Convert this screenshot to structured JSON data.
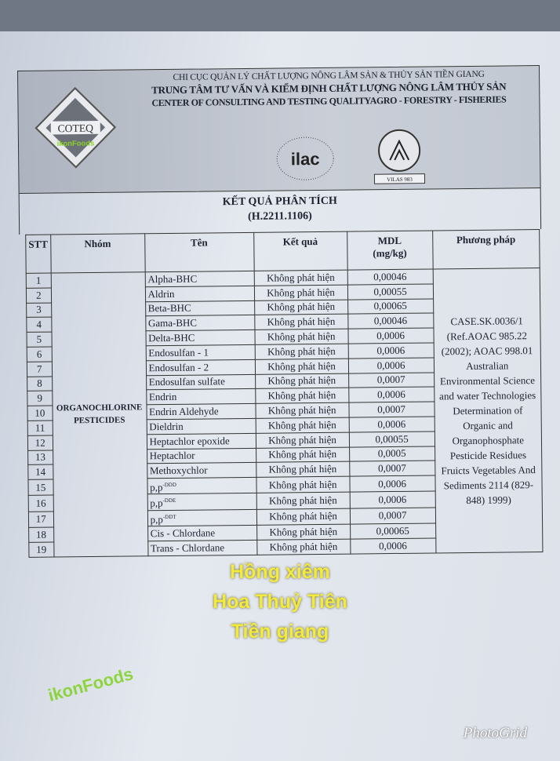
{
  "header": {
    "line1": "CHI CỤC QUẢN LÝ CHẤT LƯỢNG NÔNG LÂM SẢN & THỦY SẢN TIỀN GIANG",
    "line2": "TRUNG TÂM TƯ VẤN VÀ KIỂM ĐỊNH CHẤT LƯỢNG NÔNG LÂM THỦY SẢN",
    "line3": "CENTER OF CONSULTING AND TESTING QUALITYAGRO - FORESTRY - FISHERIES",
    "logo_text": "COTEQ",
    "ilac": "ilac",
    "vilas": "VILAS 983"
  },
  "report": {
    "title": "KẾT QUẢ PHÂN TÍCH",
    "code": "(H.2211.1106)"
  },
  "table": {
    "headers": {
      "stt": "STT",
      "group": "Nhóm",
      "name": "Tên",
      "result": "Kết quả",
      "mdl": "MDL",
      "mdl_unit": "(mg/kg)",
      "method": "Phương pháp"
    },
    "group": "ORGANOCHLORINE PESTICIDES",
    "method": "CASE.SK.0036/1 (Ref.AOAC 985.22 (2002); AOAC 998.01 Australian Environmental Science and water Technologies Determination of Organic and Organophosphate Pesticide Residues Fruicts Vegetables And Sediments 2114 (829-848) 1999)",
    "rows": [
      {
        "stt": "1",
        "name": "Alpha-BHC",
        "result": "Không phát hiện",
        "mdl": "0,00046"
      },
      {
        "stt": "2",
        "name": "Aldrin",
        "result": "Không phát hiện",
        "mdl": "0,00055"
      },
      {
        "stt": "3",
        "name": "Beta-BHC",
        "result": "Không phát hiện",
        "mdl": "0,00065"
      },
      {
        "stt": "4",
        "name": "Gama-BHC",
        "result": "Không phát hiện",
        "mdl": "0,00046"
      },
      {
        "stt": "5",
        "name": "Delta-BHC",
        "result": "Không phát hiện",
        "mdl": "0,0006"
      },
      {
        "stt": "6",
        "name": "Endosulfan - 1",
        "result": "Không phát hiện",
        "mdl": "0,0006"
      },
      {
        "stt": "7",
        "name": "Endosulfan - 2",
        "result": "Không phát hiện",
        "mdl": "0,0006"
      },
      {
        "stt": "8",
        "name": "Endosulfan sulfate",
        "result": "Không phát hiện",
        "mdl": "0,0007"
      },
      {
        "stt": "9",
        "name": "Endrin",
        "result": "Không phát hiện",
        "mdl": "0,0006"
      },
      {
        "stt": "10",
        "name": "Endrin Aldehyde",
        "result": "Không phát hiện",
        "mdl": "0,0007"
      },
      {
        "stt": "11",
        "name": "Dieldrin",
        "result": "Không phát hiện",
        "mdl": "0,0006"
      },
      {
        "stt": "12",
        "name": "Heptachlor epoxide",
        "result": "Không phát hiện",
        "mdl": "0,00055"
      },
      {
        "stt": "13",
        "name": "Heptachlor",
        "result": "Không phát hiện",
        "mdl": "0,0005"
      },
      {
        "stt": "14",
        "name": "Methoxychlor",
        "result": "Không phát hiện",
        "mdl": "0,0007"
      },
      {
        "stt": "15",
        "name": "p,p",
        "sup": "-DDD",
        "result": "Không phát hiện",
        "mdl": "0,0006"
      },
      {
        "stt": "16",
        "name": "p,p",
        "sup": "-DDE",
        "result": "Không phát hiện",
        "mdl": "0,0006"
      },
      {
        "stt": "17",
        "name": "p,p",
        "sup": "-DDT",
        "result": "Không phát hiện",
        "mdl": "0,0007"
      },
      {
        "stt": "18",
        "name": "Cis - Chlordane",
        "result": "Không phát hiện",
        "mdl": "0,00065"
      },
      {
        "stt": "19",
        "name": "Trans - Chlordane",
        "result": "Không phát hiện",
        "mdl": "0,0006"
      }
    ]
  },
  "overlay": {
    "line1": "Hồng  xiêm",
    "line2": "Hoa Thuỷ Tiên",
    "line3": "Tiền giang",
    "color": "#f3ea3c"
  },
  "watermark": "ikonFoods",
  "photogrid": "PhotoGrid"
}
